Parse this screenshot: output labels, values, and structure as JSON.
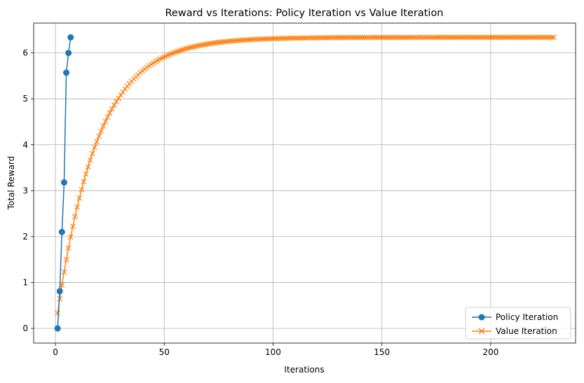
{
  "chart_data": {
    "type": "line",
    "title": "Reward vs Iterations: Policy Iteration vs Value Iteration",
    "xlabel": "Iterations",
    "ylabel": "Total Reward",
    "xlim": [
      -10,
      239
    ],
    "ylim": [
      -0.32,
      6.65
    ],
    "xticks": [
      0,
      50,
      100,
      150,
      200
    ],
    "yticks": [
      0,
      1,
      2,
      3,
      4,
      5,
      6
    ],
    "grid": true,
    "legend_position": "lower right",
    "series": [
      {
        "name": "Policy Iteration",
        "color": "#1f77b4",
        "marker": "circle",
        "x": [
          1,
          2,
          3,
          4,
          5,
          6,
          7
        ],
        "y": [
          0.0,
          0.81,
          2.1,
          3.18,
          5.57,
          6.0,
          6.34
        ]
      },
      {
        "name": "Value Iteration",
        "color": "#ff7f0e",
        "marker": "x",
        "x_start": 1,
        "x_end": 229,
        "function": "exponential_approach",
        "y_start": 0.33,
        "y_final": 6.34,
        "rate": 0.054
      }
    ]
  }
}
